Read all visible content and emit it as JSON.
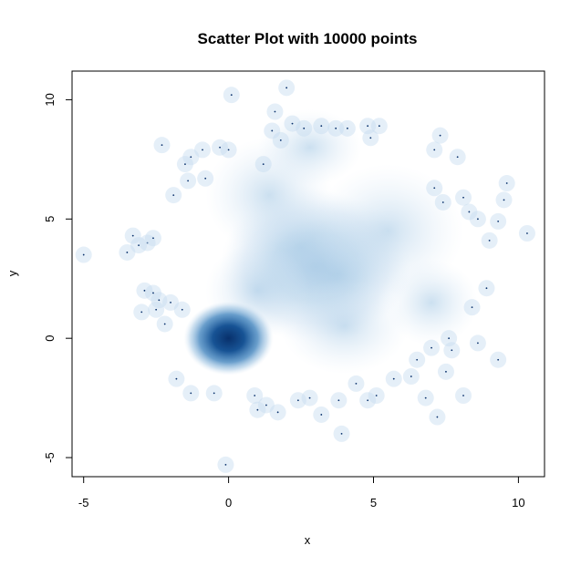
{
  "chart_data": {
    "type": "scatter",
    "title": "Scatter Plot with 10000 points",
    "xlabel": "x",
    "ylabel": "y",
    "xlim": [
      -5.4,
      10.9
    ],
    "ylim": [
      -5.8,
      11.2
    ],
    "x_ticks": [
      -5,
      0,
      5,
      10
    ],
    "y_ticks": [
      -5,
      0,
      5,
      10
    ],
    "color": "#08306B",
    "density_clusters": [
      {
        "center": [
          0,
          0
        ],
        "spread": 1.0,
        "weight": "dense"
      },
      {
        "center": [
          3,
          3
        ],
        "spread": 3.0,
        "weight": "diffuse"
      }
    ],
    "outlier_points": [
      [
        -5.0,
        3.5
      ],
      [
        0.1,
        10.2
      ],
      [
        2.0,
        10.5
      ],
      [
        -0.1,
        -5.3
      ],
      [
        3.9,
        -4.0
      ],
      [
        -3.3,
        4.3
      ],
      [
        -3.1,
        3.9
      ],
      [
        -2.8,
        4.0
      ],
      [
        -2.6,
        4.2
      ],
      [
        -3.5,
        3.6
      ],
      [
        -2.9,
        2.0
      ],
      [
        -2.6,
        1.9
      ],
      [
        -2.4,
        1.6
      ],
      [
        -2.5,
        1.2
      ],
      [
        -3.0,
        1.1
      ],
      [
        -2.2,
        0.6
      ],
      [
        -2.0,
        1.5
      ],
      [
        -1.6,
        1.2
      ],
      [
        -1.8,
        -1.7
      ],
      [
        -1.3,
        -2.3
      ],
      [
        -0.5,
        -2.3
      ],
      [
        0.9,
        -2.4
      ],
      [
        1.3,
        -2.8
      ],
      [
        1.7,
        -3.1
      ],
      [
        2.8,
        -2.5
      ],
      [
        3.2,
        -3.2
      ],
      [
        3.8,
        -2.6
      ],
      [
        4.4,
        -1.9
      ],
      [
        4.8,
        -2.6
      ],
      [
        5.1,
        -2.4
      ],
      [
        5.7,
        -1.7
      ],
      [
        6.3,
        -1.6
      ],
      [
        6.8,
        -2.5
      ],
      [
        7.2,
        -3.3
      ],
      [
        7.5,
        -1.4
      ],
      [
        7.7,
        -0.5
      ],
      [
        8.1,
        -2.4
      ],
      [
        8.6,
        -0.2
      ],
      [
        9.3,
        -0.9
      ],
      [
        8.9,
        2.1
      ],
      [
        8.4,
        1.3
      ],
      [
        9.0,
        4.1
      ],
      [
        9.3,
        4.9
      ],
      [
        10.3,
        4.4
      ],
      [
        9.5,
        5.8
      ],
      [
        9.6,
        6.5
      ],
      [
        8.1,
        5.9
      ],
      [
        8.3,
        5.3
      ],
      [
        8.6,
        5.0
      ],
      [
        7.1,
        6.3
      ],
      [
        7.4,
        5.7
      ],
      [
        7.9,
        7.6
      ],
      [
        7.3,
        8.5
      ],
      [
        7.1,
        7.9
      ],
      [
        5.2,
        8.9
      ],
      [
        4.8,
        8.9
      ],
      [
        4.9,
        8.4
      ],
      [
        4.1,
        8.8
      ],
      [
        3.7,
        8.8
      ],
      [
        3.2,
        8.9
      ],
      [
        2.6,
        8.8
      ],
      [
        2.2,
        9.0
      ],
      [
        1.8,
        8.3
      ],
      [
        1.5,
        8.7
      ],
      [
        1.2,
        7.3
      ],
      [
        -0.3,
        8.0
      ],
      [
        -0.9,
        7.9
      ],
      [
        -1.3,
        7.6
      ],
      [
        -1.5,
        7.3
      ],
      [
        -2.3,
        8.1
      ],
      [
        -1.9,
        6.0
      ],
      [
        -1.4,
        6.6
      ],
      [
        -0.8,
        6.7
      ],
      [
        0.0,
        7.9
      ],
      [
        1.6,
        9.5
      ],
      [
        7.0,
        -0.4
      ],
      [
        7.6,
        0.0
      ],
      [
        6.5,
        -0.9
      ],
      [
        1.0,
        -3.0
      ],
      [
        2.4,
        -2.6
      ]
    ]
  }
}
